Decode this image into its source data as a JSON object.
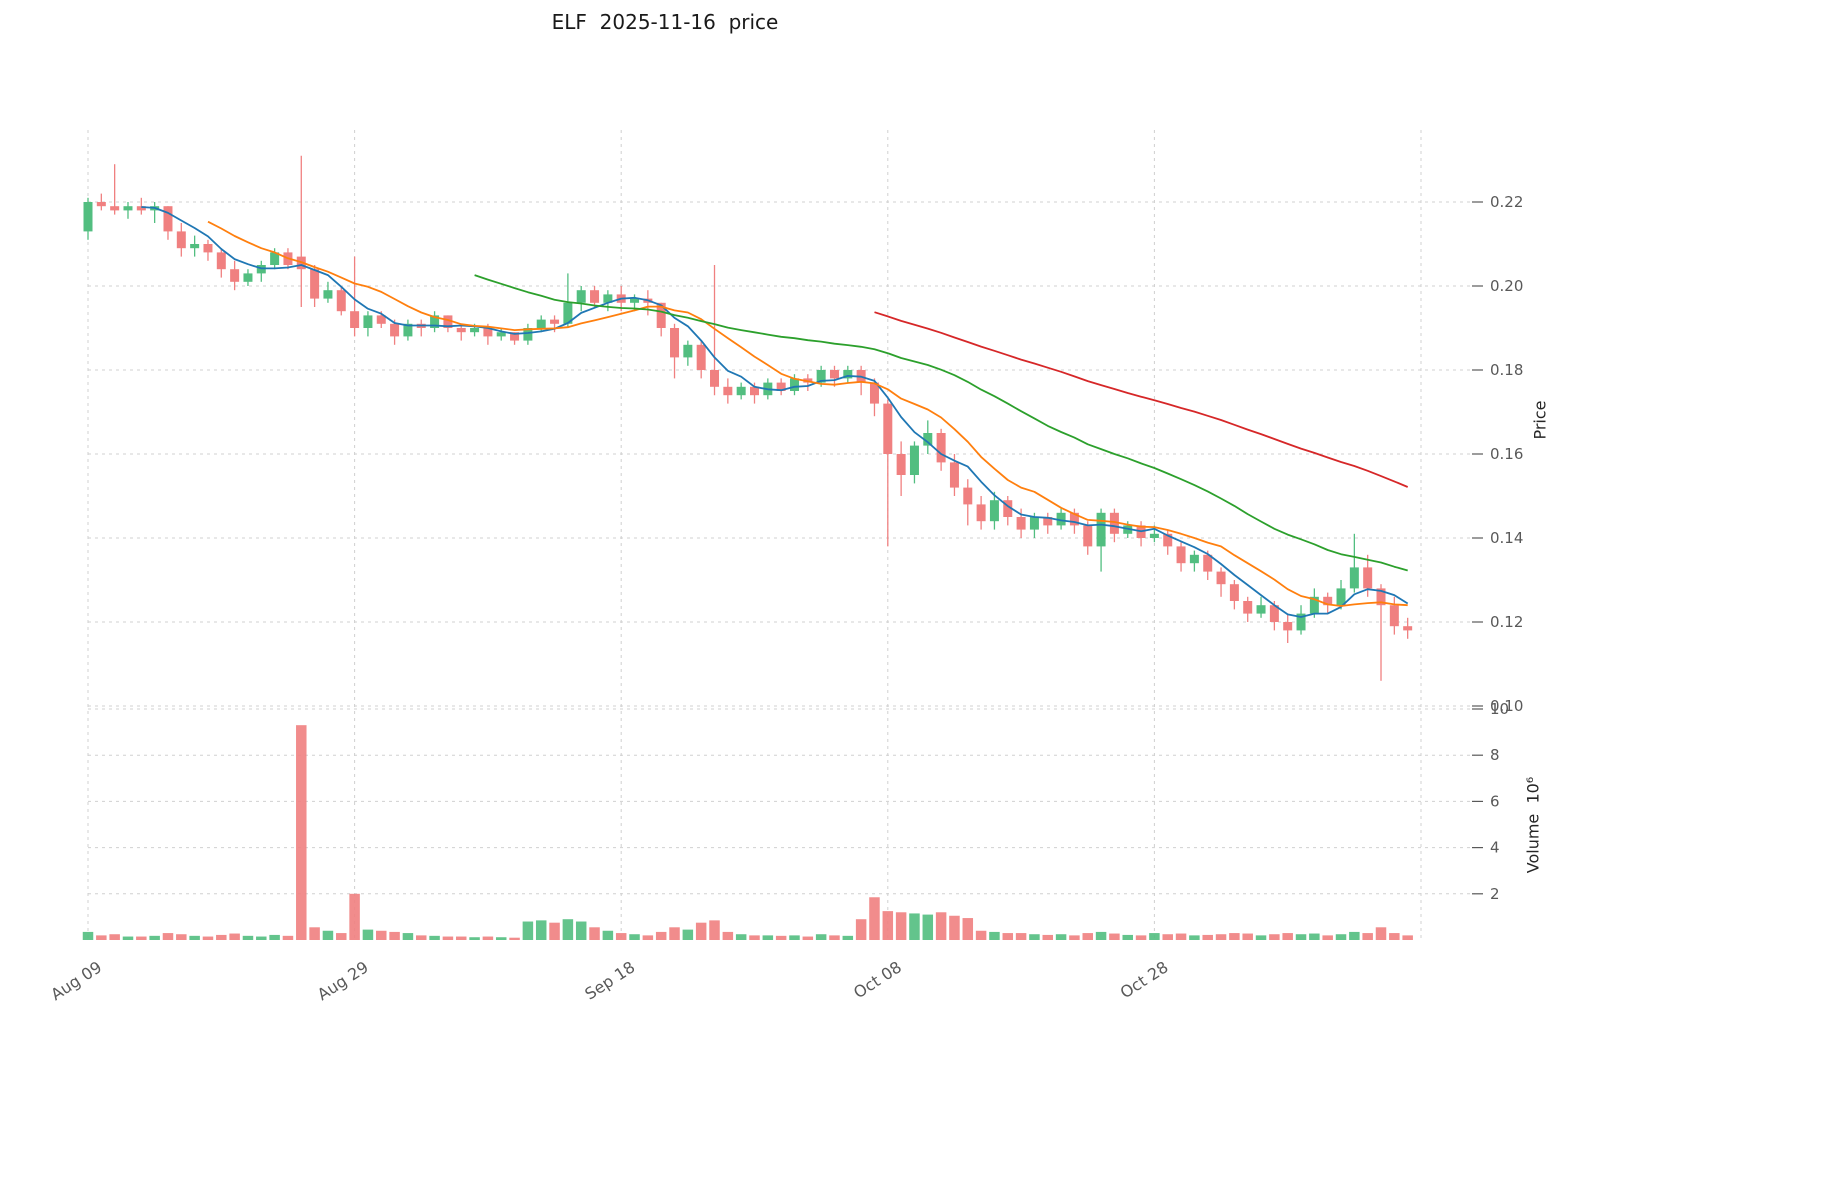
{
  "title": "ELF  2025-11-16  price",
  "axes": {
    "price_label": "Price",
    "volume_label": "Volume  10⁶",
    "price_ticks": [
      {
        "value": 0.22,
        "label": "0.22"
      },
      {
        "value": 0.2,
        "label": "0.20"
      },
      {
        "value": 0.18,
        "label": "0.18"
      },
      {
        "value": 0.16,
        "label": "0.16"
      },
      {
        "value": 0.14,
        "label": "0.14"
      },
      {
        "value": 0.12,
        "label": "0.12"
      },
      {
        "value": 0.1,
        "label": "0.10"
      }
    ],
    "volume_ticks": [
      {
        "value": 10,
        "label": "10"
      },
      {
        "value": 8,
        "label": "8"
      },
      {
        "value": 6,
        "label": "6"
      },
      {
        "value": 4,
        "label": "4"
      },
      {
        "value": 2,
        "label": "2"
      }
    ],
    "x_ticks": [
      {
        "index": 0,
        "label": "Aug 09"
      },
      {
        "index": 20,
        "label": "Aug 29"
      },
      {
        "index": 40,
        "label": "Sep 18"
      },
      {
        "index": 60,
        "label": "Oct 08"
      },
      {
        "index": 80,
        "label": "Oct 28"
      },
      {
        "index": 100,
        "label": ""
      }
    ]
  },
  "style": {
    "up_color": "#52be80",
    "down_color": "#f08080",
    "grid_color": "#d0d0d0",
    "tick_text_color": "#595959"
  },
  "chart_data": {
    "type": "candlestick",
    "title": "ELF  2025-11-16  price",
    "xlabel": "",
    "ylabel": "Price",
    "ylabel_volume": "Volume  10⁶",
    "x_tick_labels": [
      "Aug 09",
      "Aug 29",
      "Sep 18",
      "Oct 08",
      "Oct 28"
    ],
    "price_axis_ticks": [
      0.1,
      0.12,
      0.14,
      0.16,
      0.18,
      0.2,
      0.22
    ],
    "volume_axis_ticks": [
      2,
      4,
      6,
      8,
      10
    ],
    "grid": true,
    "legend": "none",
    "ohlcv_format": [
      "open",
      "high",
      "low",
      "close",
      "volume_millions"
    ],
    "moving_averages": [
      {
        "window": 5,
        "color": "#1f77b4"
      },
      {
        "window": 10,
        "color": "#ff7f0e"
      },
      {
        "window": 30,
        "color": "#2ca02c"
      },
      {
        "window": 60,
        "color": "#d62728"
      }
    ],
    "candles": [
      [
        0.213,
        0.221,
        0.211,
        0.22,
        0.35
      ],
      [
        0.22,
        0.222,
        0.218,
        0.219,
        0.2
      ],
      [
        0.219,
        0.229,
        0.217,
        0.218,
        0.25
      ],
      [
        0.218,
        0.22,
        0.216,
        0.219,
        0.15
      ],
      [
        0.219,
        0.221,
        0.217,
        0.218,
        0.15
      ],
      [
        0.218,
        0.22,
        0.215,
        0.219,
        0.18
      ],
      [
        0.219,
        0.219,
        0.211,
        0.213,
        0.3
      ],
      [
        0.213,
        0.215,
        0.207,
        0.209,
        0.25
      ],
      [
        0.209,
        0.212,
        0.207,
        0.21,
        0.18
      ],
      [
        0.21,
        0.211,
        0.206,
        0.208,
        0.15
      ],
      [
        0.208,
        0.209,
        0.202,
        0.204,
        0.22
      ],
      [
        0.204,
        0.206,
        0.199,
        0.201,
        0.28
      ],
      [
        0.201,
        0.204,
        0.2,
        0.203,
        0.18
      ],
      [
        0.203,
        0.206,
        0.201,
        0.205,
        0.15
      ],
      [
        0.205,
        0.209,
        0.204,
        0.208,
        0.22
      ],
      [
        0.208,
        0.209,
        0.204,
        0.205,
        0.18
      ],
      [
        0.207,
        0.231,
        0.195,
        0.204,
        9.3
      ],
      [
        0.204,
        0.205,
        0.195,
        0.197,
        0.55
      ],
      [
        0.197,
        0.201,
        0.196,
        0.199,
        0.4
      ],
      [
        0.199,
        0.2,
        0.193,
        0.194,
        0.3
      ],
      [
        0.194,
        0.207,
        0.188,
        0.19,
        2.0
      ],
      [
        0.19,
        0.194,
        0.188,
        0.193,
        0.45
      ],
      [
        0.193,
        0.194,
        0.19,
        0.191,
        0.4
      ],
      [
        0.191,
        0.192,
        0.186,
        0.188,
        0.35
      ],
      [
        0.188,
        0.192,
        0.187,
        0.191,
        0.3
      ],
      [
        0.191,
        0.192,
        0.188,
        0.19,
        0.2
      ],
      [
        0.19,
        0.194,
        0.189,
        0.193,
        0.18
      ],
      [
        0.193,
        0.193,
        0.189,
        0.19,
        0.15
      ],
      [
        0.19,
        0.191,
        0.187,
        0.189,
        0.15
      ],
      [
        0.189,
        0.191,
        0.188,
        0.19,
        0.12
      ],
      [
        0.19,
        0.191,
        0.186,
        0.188,
        0.15
      ],
      [
        0.188,
        0.19,
        0.187,
        0.189,
        0.12
      ],
      [
        0.189,
        0.189,
        0.186,
        0.187,
        0.1
      ],
      [
        0.187,
        0.191,
        0.186,
        0.19,
        0.8
      ],
      [
        0.19,
        0.193,
        0.189,
        0.192,
        0.85
      ],
      [
        0.192,
        0.193,
        0.189,
        0.191,
        0.75
      ],
      [
        0.191,
        0.203,
        0.19,
        0.196,
        0.9
      ],
      [
        0.196,
        0.2,
        0.194,
        0.199,
        0.8
      ],
      [
        0.199,
        0.2,
        0.195,
        0.196,
        0.55
      ],
      [
        0.196,
        0.199,
        0.194,
        0.198,
        0.4
      ],
      [
        0.198,
        0.2,
        0.194,
        0.196,
        0.3
      ],
      [
        0.196,
        0.198,
        0.194,
        0.197,
        0.25
      ],
      [
        0.197,
        0.199,
        0.193,
        0.196,
        0.2
      ],
      [
        0.196,
        0.196,
        0.188,
        0.19,
        0.35
      ],
      [
        0.19,
        0.191,
        0.178,
        0.183,
        0.55
      ],
      [
        0.183,
        0.187,
        0.181,
        0.186,
        0.45
      ],
      [
        0.186,
        0.187,
        0.178,
        0.18,
        0.75
      ],
      [
        0.18,
        0.205,
        0.174,
        0.176,
        0.85
      ],
      [
        0.176,
        0.178,
        0.172,
        0.174,
        0.35
      ],
      [
        0.174,
        0.177,
        0.173,
        0.176,
        0.25
      ],
      [
        0.176,
        0.177,
        0.172,
        0.174,
        0.2
      ],
      [
        0.174,
        0.178,
        0.173,
        0.177,
        0.2
      ],
      [
        0.177,
        0.178,
        0.174,
        0.175,
        0.18
      ],
      [
        0.175,
        0.179,
        0.174,
        0.178,
        0.2
      ],
      [
        0.178,
        0.179,
        0.175,
        0.177,
        0.15
      ],
      [
        0.177,
        0.181,
        0.176,
        0.18,
        0.25
      ],
      [
        0.18,
        0.181,
        0.176,
        0.178,
        0.2
      ],
      [
        0.178,
        0.181,
        0.177,
        0.18,
        0.18
      ],
      [
        0.18,
        0.181,
        0.174,
        0.177,
        0.9
      ],
      [
        0.177,
        0.178,
        0.169,
        0.172,
        1.85
      ],
      [
        0.172,
        0.173,
        0.138,
        0.16,
        1.25
      ],
      [
        0.16,
        0.163,
        0.15,
        0.155,
        1.2
      ],
      [
        0.155,
        0.163,
        0.153,
        0.162,
        1.15
      ],
      [
        0.162,
        0.168,
        0.16,
        0.165,
        1.1
      ],
      [
        0.165,
        0.166,
        0.156,
        0.158,
        1.2
      ],
      [
        0.158,
        0.16,
        0.15,
        0.152,
        1.05
      ],
      [
        0.152,
        0.154,
        0.143,
        0.148,
        0.95
      ],
      [
        0.148,
        0.15,
        0.142,
        0.144,
        0.4
      ],
      [
        0.144,
        0.151,
        0.142,
        0.149,
        0.35
      ],
      [
        0.149,
        0.15,
        0.143,
        0.145,
        0.3
      ],
      [
        0.145,
        0.147,
        0.14,
        0.142,
        0.3
      ],
      [
        0.142,
        0.146,
        0.14,
        0.145,
        0.25
      ],
      [
        0.145,
        0.146,
        0.141,
        0.143,
        0.22
      ],
      [
        0.143,
        0.147,
        0.142,
        0.146,
        0.25
      ],
      [
        0.146,
        0.147,
        0.141,
        0.143,
        0.2
      ],
      [
        0.143,
        0.144,
        0.136,
        0.138,
        0.3
      ],
      [
        0.138,
        0.147,
        0.132,
        0.146,
        0.35
      ],
      [
        0.146,
        0.147,
        0.139,
        0.141,
        0.28
      ],
      [
        0.141,
        0.144,
        0.14,
        0.143,
        0.22
      ],
      [
        0.143,
        0.144,
        0.138,
        0.14,
        0.2
      ],
      [
        0.14,
        0.143,
        0.139,
        0.141,
        0.3
      ],
      [
        0.141,
        0.142,
        0.136,
        0.138,
        0.25
      ],
      [
        0.138,
        0.139,
        0.132,
        0.134,
        0.28
      ],
      [
        0.134,
        0.137,
        0.132,
        0.136,
        0.2
      ],
      [
        0.136,
        0.137,
        0.13,
        0.132,
        0.22
      ],
      [
        0.132,
        0.133,
        0.126,
        0.129,
        0.25
      ],
      [
        0.129,
        0.13,
        0.123,
        0.125,
        0.3
      ],
      [
        0.125,
        0.126,
        0.12,
        0.122,
        0.28
      ],
      [
        0.122,
        0.126,
        0.121,
        0.124,
        0.2
      ],
      [
        0.124,
        0.125,
        0.118,
        0.12,
        0.25
      ],
      [
        0.12,
        0.122,
        0.115,
        0.118,
        0.3
      ],
      [
        0.118,
        0.124,
        0.117,
        0.122,
        0.25
      ],
      [
        0.122,
        0.128,
        0.121,
        0.126,
        0.28
      ],
      [
        0.126,
        0.127,
        0.122,
        0.124,
        0.2
      ],
      [
        0.124,
        0.13,
        0.123,
        0.128,
        0.25
      ],
      [
        0.128,
        0.141,
        0.127,
        0.133,
        0.35
      ],
      [
        0.133,
        0.136,
        0.126,
        0.128,
        0.3
      ],
      [
        0.128,
        0.129,
        0.106,
        0.124,
        0.55
      ],
      [
        0.124,
        0.126,
        0.117,
        0.119,
        0.3
      ],
      [
        0.119,
        0.121,
        0.116,
        0.118,
        0.2
      ]
    ]
  }
}
